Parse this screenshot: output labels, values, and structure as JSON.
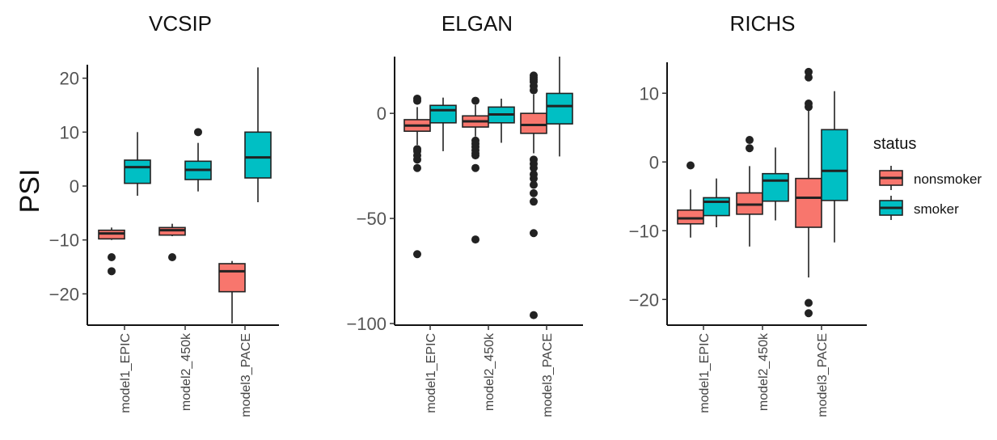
{
  "chart_data": {
    "type": "box",
    "ylabel": "PSI",
    "legend": {
      "title": "status",
      "placement": "right",
      "entries": [
        {
          "name": "nonsmoker",
          "color": "#F8766D"
        },
        {
          "name": "smoker",
          "color": "#00BFC4"
        }
      ]
    },
    "grid": false,
    "categories": [
      "model1_EPIC",
      "model2_450k",
      "model3_PACE"
    ],
    "panels": [
      {
        "title": "VCSIP",
        "ylim": [
          -25.5,
          22.5
        ],
        "yticks": [
          -20,
          -10,
          0,
          10,
          20
        ],
        "boxes": [
          {
            "category": "model1_EPIC",
            "status": "nonsmoker",
            "min": -10,
            "q1": -9.8,
            "median": -8.8,
            "q3": -8.2,
            "max": -7.7,
            "outliers": [
              -13.2,
              -15.8
            ]
          },
          {
            "category": "model1_EPIC",
            "status": "smoker",
            "min": -1.8,
            "q1": 0.5,
            "median": 3.5,
            "q3": 4.8,
            "max": 10,
            "outliers": []
          },
          {
            "category": "model2_450k",
            "status": "nonsmoker",
            "min": -9.3,
            "q1": -9.1,
            "median": -8.2,
            "q3": -7.7,
            "max": -7,
            "outliers": [
              -13.2
            ]
          },
          {
            "category": "model2_450k",
            "status": "smoker",
            "min": -1,
            "q1": 1.2,
            "median": 3,
            "q3": 4.6,
            "max": 8,
            "outliers": [
              10
            ]
          },
          {
            "category": "model3_PACE",
            "status": "nonsmoker",
            "min": -25.5,
            "q1": -19.6,
            "median": -15.8,
            "q3": -14.4,
            "max": -13.9,
            "outliers": []
          },
          {
            "category": "model3_PACE",
            "status": "smoker",
            "min": -3,
            "q1": 1.5,
            "median": 5.3,
            "q3": 10,
            "max": 22,
            "outliers": []
          }
        ]
      },
      {
        "title": "ELGAN",
        "ylim": [
          -100,
          27
        ],
        "yticks": [
          -100,
          -50,
          0
        ],
        "boxes": [
          {
            "category": "model1_EPIC",
            "status": "nonsmoker",
            "min": -15,
            "q1": -8.5,
            "median": -5.8,
            "q3": -3,
            "max": 3,
            "outliers": [
              -17,
              -18,
              -20,
              -22,
              -26,
              -67,
              6,
              7
            ]
          },
          {
            "category": "model1_EPIC",
            "status": "smoker",
            "min": -18,
            "q1": -4.5,
            "median": 1.5,
            "q3": 3.8,
            "max": 7.5,
            "outliers": []
          },
          {
            "category": "model2_450k",
            "status": "nonsmoker",
            "min": -11,
            "q1": -6.5,
            "median": -3.8,
            "q3": -1.2,
            "max": 4,
            "outliers": [
              -13,
              -14.5,
              -16,
              -17.5,
              -19,
              -20,
              -26,
              -60,
              6
            ]
          },
          {
            "category": "model2_450k",
            "status": "smoker",
            "min": -14,
            "q1": -4.5,
            "median": -0.5,
            "q3": 3,
            "max": 7,
            "outliers": []
          },
          {
            "category": "model3_PACE",
            "status": "nonsmoker",
            "min": -19,
            "q1": -9.5,
            "median": -5.5,
            "q3": 0,
            "max": 9,
            "outliers": [
              -22,
              -24,
              -26,
              -29,
              -31,
              -34,
              -38,
              -42,
              -57,
              -96,
              11,
              13,
              15,
              16,
              17,
              18
            ]
          },
          {
            "category": "model3_PACE",
            "status": "smoker",
            "min": -20.5,
            "q1": -5,
            "median": 3.5,
            "q3": 9.5,
            "max": 27,
            "outliers": []
          }
        ]
      },
      {
        "title": "RICHS",
        "ylim": [
          -23.5,
          14.5
        ],
        "yticks": [
          -20,
          -10,
          0,
          10
        ],
        "boxes": [
          {
            "category": "model1_EPIC",
            "status": "nonsmoker",
            "min": -11,
            "q1": -9,
            "median": -8.2,
            "q3": -7,
            "max": -4,
            "outliers": [
              -0.5
            ]
          },
          {
            "category": "model1_EPIC",
            "status": "smoker",
            "min": -9.5,
            "q1": -7.8,
            "median": -5.8,
            "q3": -5.2,
            "max": -2.4,
            "outliers": []
          },
          {
            "category": "model2_450k",
            "status": "nonsmoker",
            "min": -12.3,
            "q1": -7.6,
            "median": -6.2,
            "q3": -4.5,
            "max": -0.6,
            "outliers": [
              2,
              3.2
            ]
          },
          {
            "category": "model2_450k",
            "status": "smoker",
            "min": -8.5,
            "q1": -5.7,
            "median": -2.7,
            "q3": -1.7,
            "max": 2.1,
            "outliers": []
          },
          {
            "category": "model3_PACE",
            "status": "nonsmoker",
            "min": -16.8,
            "q1": -9.5,
            "median": -5.2,
            "q3": -2.4,
            "max": 7.5,
            "outliers": [
              -20.5,
              -22,
              8,
              8.5,
              12.3,
              13.1
            ]
          },
          {
            "category": "model3_PACE",
            "status": "smoker",
            "min": -11.7,
            "q1": -5.6,
            "median": -1.3,
            "q3": 4.7,
            "max": 10.3,
            "outliers": []
          }
        ]
      }
    ]
  }
}
